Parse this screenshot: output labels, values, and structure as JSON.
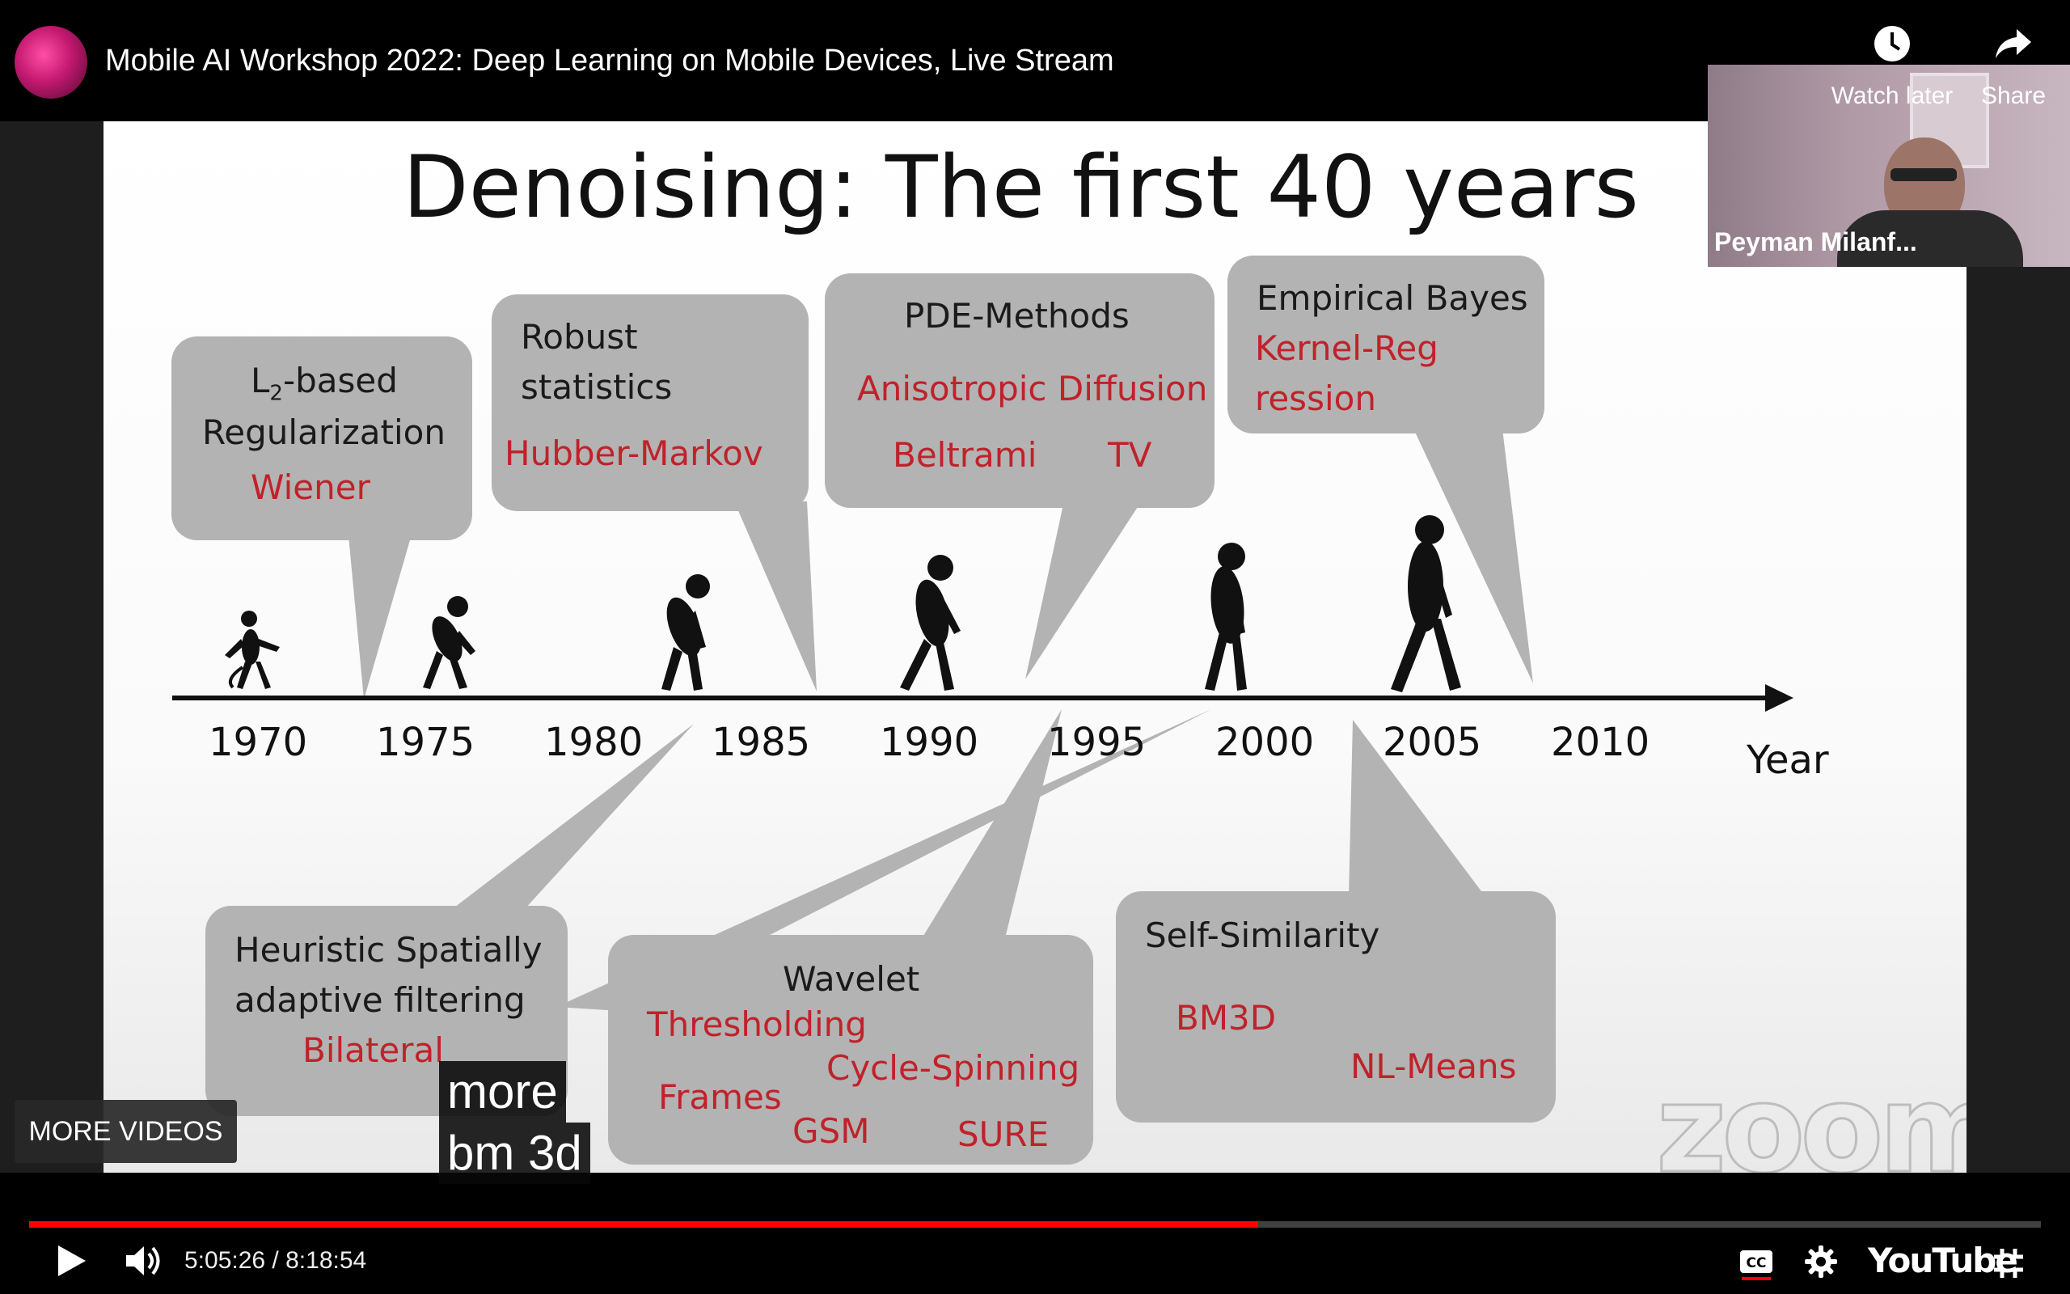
{
  "video": {
    "title": "Mobile AI Workshop 2022: Deep Learning on Mobile Devices, Live Stream",
    "watch_later_label": "Watch later",
    "share_label": "Share"
  },
  "speaker": {
    "name": "Peyman Milanf..."
  },
  "slide": {
    "title": "Denoising:  The first 40 years",
    "watermark": "zoom",
    "timeline": {
      "years": [
        "1970",
        "1975",
        "1980",
        "1985",
        "1990",
        "1995",
        "2000",
        "2005",
        "2010"
      ],
      "axis_label": "Year"
    },
    "bubbles": {
      "l2": {
        "line1_pre": "L",
        "line1_sub": "2",
        "line1_post": "-based",
        "line2": "Regularization",
        "method": "Wiener"
      },
      "robust": {
        "line1": "Robust",
        "line2": "statistics",
        "method": "Hubber-Markov"
      },
      "pde": {
        "title": "PDE-Methods",
        "method1": "Anisotropic Diffusion",
        "method2": "Beltrami",
        "method3": "TV"
      },
      "bayes": {
        "title": "Empirical Bayes",
        "method1": "Kernel-Reg",
        "method2": "ression"
      },
      "heuristic": {
        "line1": "Heuristic Spatially",
        "line2": "adaptive filtering",
        "method": "Bilateral"
      },
      "wavelet": {
        "title": "Wavelet",
        "m1": "Thresholding",
        "m2": "Cycle-Spinning",
        "m3": "Frames",
        "m4": "GSM",
        "m5": "SURE"
      },
      "selfsim": {
        "title": "Self-Similarity",
        "m1": "BM3D",
        "m2": "NL-Means"
      }
    }
  },
  "overlay": {
    "more_videos": "MORE VIDEOS",
    "captions": [
      "more",
      "bm 3d"
    ]
  },
  "controls": {
    "current_time": "5:05:26",
    "separator": " / ",
    "duration": "8:18:54",
    "progress_fraction": 0.611,
    "youtube_label": "YouTube",
    "accent": "#ff0000"
  }
}
